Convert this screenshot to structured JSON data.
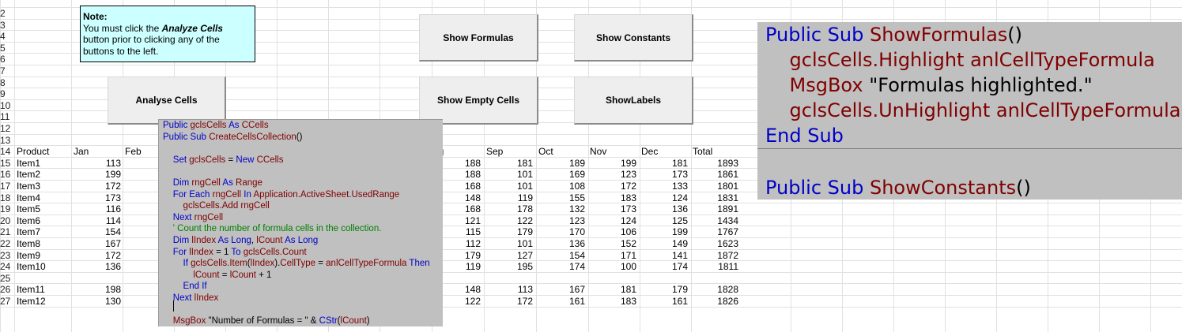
{
  "row_numbers": [
    "2",
    "3",
    "4",
    "5",
    "6",
    "7",
    "8",
    "9",
    "10",
    "11",
    "12",
    "13",
    "14",
    "15",
    "16",
    "17",
    "18",
    "19",
    "20",
    "21",
    "22",
    "23",
    "24",
    "25",
    "26",
    "27"
  ],
  "note": {
    "title": "Note:",
    "line1_pre": "You must click the ",
    "line1_button": "Analyze Cells",
    "line2": "button prior to clicking any of the",
    "line3": "buttons to the left."
  },
  "buttons": {
    "analyse_cells": "Analyse Cells",
    "show_formulas": "Show Formulas",
    "show_constants": "Show Constants",
    "show_empty_cells": "Show Empty Cells",
    "show_labels": "ShowLabels"
  },
  "table": {
    "headers_left": [
      "Product",
      "Jan",
      "Feb"
    ],
    "headers_right": [
      "ug",
      "Sep",
      "Oct",
      "Nov",
      "Dec",
      "Total"
    ],
    "rows": [
      {
        "product": "Item1",
        "jan": "113",
        "aug": "188",
        "sep": "181",
        "oct": "189",
        "nov": "199",
        "dec": "181",
        "total": "1893"
      },
      {
        "product": "Item2",
        "jan": "199",
        "aug": "188",
        "sep": "101",
        "oct": "169",
        "nov": "123",
        "dec": "173",
        "total": "1861"
      },
      {
        "product": "Item3",
        "jan": "172",
        "aug": "168",
        "sep": "101",
        "oct": "108",
        "nov": "172",
        "dec": "133",
        "total": "1801"
      },
      {
        "product": "Item4",
        "jan": "173",
        "aug": "148",
        "sep": "119",
        "oct": "155",
        "nov": "183",
        "dec": "124",
        "total": "1831"
      },
      {
        "product": "Item5",
        "jan": "116",
        "aug": "168",
        "sep": "178",
        "oct": "132",
        "nov": "173",
        "dec": "136",
        "total": "1891"
      },
      {
        "product": "Item6",
        "jan": "114",
        "aug": "121",
        "sep": "122",
        "oct": "123",
        "nov": "124",
        "dec": "125",
        "total": "1434"
      },
      {
        "product": "Item7",
        "jan": "154",
        "aug": "115",
        "sep": "179",
        "oct": "170",
        "nov": "106",
        "dec": "199",
        "total": "1767"
      },
      {
        "product": "Item8",
        "jan": "167",
        "aug": "112",
        "sep": "101",
        "oct": "136",
        "nov": "152",
        "dec": "149",
        "total": "1623"
      },
      {
        "product": "Item9",
        "jan": "172",
        "aug": "179",
        "sep": "127",
        "oct": "154",
        "nov": "171",
        "dec": "141",
        "total": "1872"
      },
      {
        "product": "Item10",
        "jan": "136",
        "aug": "119",
        "sep": "195",
        "oct": "174",
        "nov": "100",
        "dec": "174",
        "total": "1811"
      },
      {
        "product": "Item11",
        "jan": "198",
        "aug": "148",
        "sep": "113",
        "oct": "167",
        "nov": "181",
        "dec": "179",
        "total": "1828"
      },
      {
        "product": "Item12",
        "jan": "130",
        "aug": "122",
        "sep": "172",
        "oct": "161",
        "nov": "183",
        "dec": "161",
        "total": "1826"
      }
    ]
  },
  "code_lines": [
    [
      [
        "kw",
        "Public "
      ],
      [
        "id",
        "gclsCells "
      ],
      [
        "kw",
        "As "
      ],
      [
        "id",
        "CCells"
      ]
    ],
    [
      [
        "kw",
        "Public Sub "
      ],
      [
        "id",
        "CreateCellsCollection"
      ],
      [
        "",
        "()"
      ]
    ],
    [],
    [
      [
        "kw",
        "    Set "
      ],
      [
        "id",
        "gclsCells "
      ],
      [
        "",
        "= "
      ],
      [
        "kw",
        "New "
      ],
      [
        "id",
        "CCells"
      ]
    ],
    [],
    [
      [
        "kw",
        "    Dim "
      ],
      [
        "id",
        "rngCell "
      ],
      [
        "kw",
        "As "
      ],
      [
        "id",
        "Range"
      ]
    ],
    [
      [
        "kw",
        "    For Each "
      ],
      [
        "id",
        "rngCell "
      ],
      [
        "kw",
        "In "
      ],
      [
        "id",
        "Application.ActiveSheet.UsedRange"
      ]
    ],
    [
      [
        "id",
        "        gclsCells.Add rngCell"
      ]
    ],
    [
      [
        "kw",
        "    Next "
      ],
      [
        "id",
        "rngCell"
      ]
    ],
    [
      [
        "cm",
        "    ' Count the number of formula cells in the collection."
      ]
    ],
    [
      [
        "kw",
        "    Dim "
      ],
      [
        "id",
        "lIndex "
      ],
      [
        "kw",
        "As Long"
      ],
      [
        "",
        ", "
      ],
      [
        "id",
        "lCount "
      ],
      [
        "kw",
        "As Long"
      ]
    ],
    [
      [
        "kw",
        "    For "
      ],
      [
        "id",
        "lIndex "
      ],
      [
        "",
        "= 1 "
      ],
      [
        "kw",
        "To "
      ],
      [
        "id",
        "gclsCells.Count"
      ]
    ],
    [
      [
        "kw",
        "        If "
      ],
      [
        "id",
        "gclsCells.Item"
      ],
      [
        "",
        "("
      ],
      [
        "id",
        "lIndex"
      ],
      [
        "",
        ")."
      ],
      [
        "id",
        "CellType "
      ],
      [
        "",
        "= "
      ],
      [
        "id",
        "anlCellTypeFormula "
      ],
      [
        "kw",
        "Then"
      ]
    ],
    [
      [
        "id",
        "            lCount "
      ],
      [
        "",
        "= "
      ],
      [
        "id",
        "lCount "
      ],
      [
        "",
        "+ 1"
      ]
    ],
    [
      [
        "kw",
        "        End If"
      ]
    ],
    [
      [
        "kw",
        "    Next "
      ],
      [
        "id",
        "lIndex"
      ]
    ],
    [],
    [
      [
        "id",
        "    MsgBox "
      ],
      [
        "",
        "\"Number of Formulas = \" & "
      ],
      [
        "kw",
        "CStr"
      ],
      [
        "",
        "("
      ],
      [
        "id",
        "lCount"
      ],
      [
        "",
        ")"
      ]
    ]
  ],
  "side_code": [
    [
      [
        "kw",
        "Public Sub "
      ],
      [
        "id",
        "ShowFormulas"
      ],
      [
        "",
        "()"
      ]
    ],
    [
      [
        "id",
        "    gclsCells.Highlight anlCellTypeFormula"
      ]
    ],
    [
      [
        "id",
        "    MsgBox "
      ],
      [
        "",
        "\"Formulas highlighted.\""
      ]
    ],
    [
      [
        "id",
        "    gclsCells.UnHighlight anlCellTypeFormula"
      ]
    ],
    [
      [
        "kw",
        "End Sub"
      ]
    ],
    [],
    [
      [
        "kw",
        "Public Sub "
      ],
      [
        "id",
        "ShowConstants"
      ],
      [
        "",
        "()"
      ]
    ]
  ]
}
